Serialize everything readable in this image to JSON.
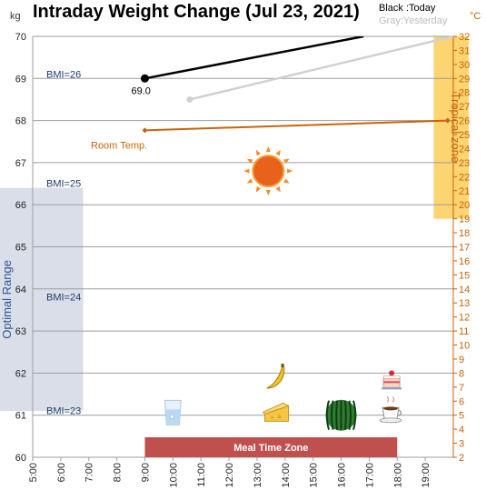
{
  "chart_data": {
    "type": "line",
    "title": "Intraday Weight Change (Jul 23, 2021)",
    "left_axis_unit": "kg",
    "right_axis_unit": "°C",
    "y_left_range": [
      60,
      70
    ],
    "y_left_ticks": [
      "60",
      "61",
      "62",
      "63",
      "64",
      "65",
      "66",
      "67",
      "68",
      "69",
      "70"
    ],
    "y_right_range": [
      2,
      32
    ],
    "y_right_ticks": [
      "2",
      "3",
      "4",
      "5",
      "6",
      "7",
      "8",
      "9",
      "10",
      "11",
      "12",
      "13",
      "14",
      "15",
      "16",
      "17",
      "18",
      "19",
      "20",
      "21",
      "22",
      "23",
      "24",
      "25",
      "26",
      "27",
      "28",
      "29",
      "30",
      "31",
      "32"
    ],
    "x_range": [
      5,
      20
    ],
    "x_ticks": [
      "5:00",
      "6:00",
      "7:00",
      "8:00",
      "9:00",
      "10:00",
      "11:00",
      "12:00",
      "13:00",
      "14:00",
      "15:00",
      "16:00",
      "17:00",
      "18:00",
      "19:00"
    ],
    "x_ticks_numeric": [
      5,
      6,
      7,
      8,
      9,
      10,
      11,
      12,
      13,
      14,
      15,
      16,
      17,
      18,
      19
    ],
    "legend": {
      "today": "Black :Today",
      "yesterday": "Gray:Yesterday"
    },
    "series": [
      {
        "name": "Today",
        "color": "#000000",
        "axis": "left",
        "x": [
          9.0,
          16.8
        ],
        "y": [
          69.0,
          70.0
        ],
        "point_label": "69.0"
      },
      {
        "name": "Yesterday",
        "color": "#d0d0d0",
        "axis": "left",
        "x": [
          10.6,
          20.0
        ],
        "y": [
          68.5,
          70.0
        ]
      },
      {
        "name": "Room Temp.",
        "color": "#c8640a",
        "axis": "right",
        "x": [
          9.0,
          19.8
        ],
        "y": [
          25.3,
          26.0
        ]
      }
    ],
    "bmi_lines": [
      {
        "label": "BMI=26",
        "value": 69.0
      },
      {
        "label": "BMI=25",
        "value": 66.4
      },
      {
        "label": "BMI=24",
        "value": 63.7
      },
      {
        "label": "BMI=23",
        "value": 61.0
      }
    ],
    "optimal_range": {
      "label": "Optimal Range",
      "from": 61.1,
      "to": 66.4
    },
    "tropical_zone": {
      "label": "Tropical zone",
      "from": 19,
      "to": 32
    },
    "meal_time_zone": {
      "label": "Meal Time Zone",
      "from": 9.0,
      "to": 18.0
    },
    "room_temp_label": "Room Temp.",
    "sun_icon": {
      "name": "sun-icon",
      "x": 13.4,
      "y": 66.8
    },
    "food_icons": [
      {
        "name": "water-glass-icon",
        "x": 10.0,
        "y": 61.05
      },
      {
        "name": "banana-icon",
        "x": 13.7,
        "y": 61.9
      },
      {
        "name": "cheese-icon",
        "x": 13.7,
        "y": 61.05
      },
      {
        "name": "watermelon-icon",
        "x": 16.0,
        "y": 61.0
      },
      {
        "name": "cake-icon",
        "x": 17.8,
        "y": 61.85
      },
      {
        "name": "coffee-icon",
        "x": 17.8,
        "y": 61.05
      }
    ]
  },
  "colors": {
    "today": "#000000",
    "yesterday": "#d0d0d0",
    "temp": "#c8640a",
    "meal_zone": "#c0504d",
    "tropical": "#fcd471",
    "optimal": "#d9dee8"
  }
}
